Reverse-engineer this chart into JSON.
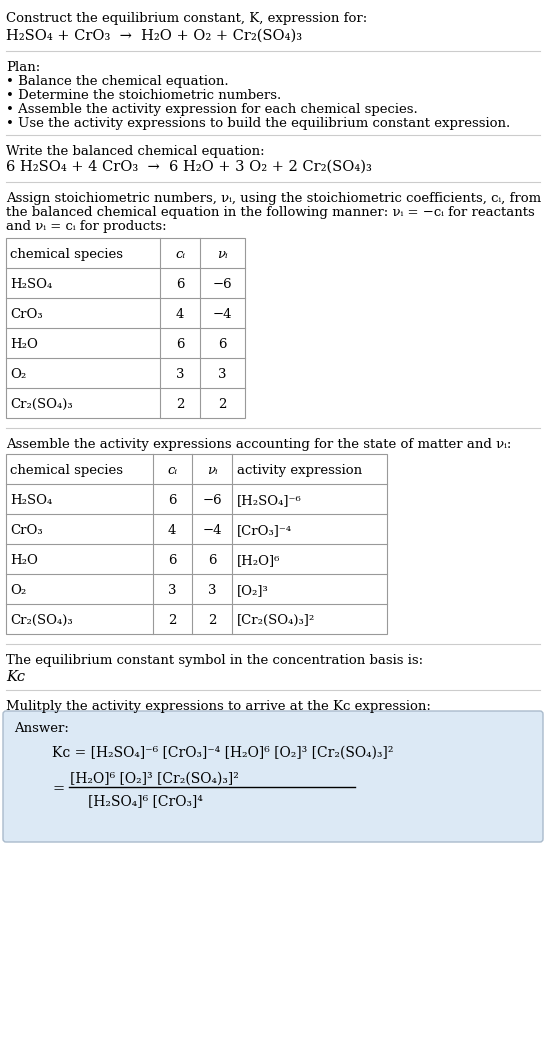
{
  "title_line1": "Construct the equilibrium constant, K, expression for:",
  "title_line2": "H₂SO₄ + CrO₃  →  H₂O + O₂ + Cr₂(SO₄)₃",
  "plan_header": "Plan:",
  "plan_items": [
    "• Balance the chemical equation.",
    "• Determine the stoichiometric numbers.",
    "• Assemble the activity expression for each chemical species.",
    "• Use the activity expressions to build the equilibrium constant expression."
  ],
  "balanced_header": "Write the balanced chemical equation:",
  "balanced_eq": "6 H₂SO₄ + 4 CrO₃  →  6 H₂O + 3 O₂ + 2 Cr₂(SO₄)₃",
  "stoich_intro": "Assign stoichiometric numbers, νᵢ, using the stoichiometric coefficients, cᵢ, from\nthe balanced chemical equation in the following manner: νᵢ = −cᵢ for reactants\nand νᵢ = cᵢ for products:",
  "table1_headers": [
    "chemical species",
    "cᵢ",
    "νᵢ"
  ],
  "table1_rows": [
    [
      "H₂SO₄",
      "6",
      "−6"
    ],
    [
      "CrO₃",
      "4",
      "−4"
    ],
    [
      "H₂O",
      "6",
      "6"
    ],
    [
      "O₂",
      "3",
      "3"
    ],
    [
      "Cr₂(SO₄)₃",
      "2",
      "2"
    ]
  ],
  "activity_intro": "Assemble the activity expressions accounting for the state of matter and νᵢ:",
  "table2_headers": [
    "chemical species",
    "cᵢ",
    "νᵢ",
    "activity expression"
  ],
  "table2_rows": [
    [
      "H₂SO₄",
      "6",
      "−6",
      "[H₂SO₄]⁻⁶"
    ],
    [
      "CrO₃",
      "4",
      "−4",
      "[CrO₃]⁻⁴"
    ],
    [
      "H₂O",
      "6",
      "6",
      "[H₂O]⁶"
    ],
    [
      "O₂",
      "3",
      "3",
      "[O₂]³"
    ],
    [
      "Cr₂(SO₄)₃",
      "2",
      "2",
      "[Cr₂(SO₄)₃]²"
    ]
  ],
  "kc_symbol_intro": "The equilibrium constant symbol in the concentration basis is:",
  "kc_symbol": "Kᴄ",
  "multiply_intro": "Mulitply the activity expressions to arrive at the Kᴄ expression:",
  "answer_label": "Answer:",
  "bg_color": "#ffffff",
  "answer_box_color": "#dce9f5",
  "table_border_color": "#999999",
  "text_color": "#000000",
  "font_size": 9.5,
  "title_font_size": 10.5,
  "line_color": "#cccccc",
  "kc_expr1": "Kᴄ = [H₂SO₄]⁻⁶ [CrO₃]⁻⁴ [H₂O]⁶ [O₂]³ [Cr₂(SO₄)₃]²",
  "kc_num": "[H₂O]⁶ [O₂]³ [Cr₂(SO₄)₃]²",
  "kc_den": "[H₂SO₄]⁶ [CrO₃]⁴"
}
